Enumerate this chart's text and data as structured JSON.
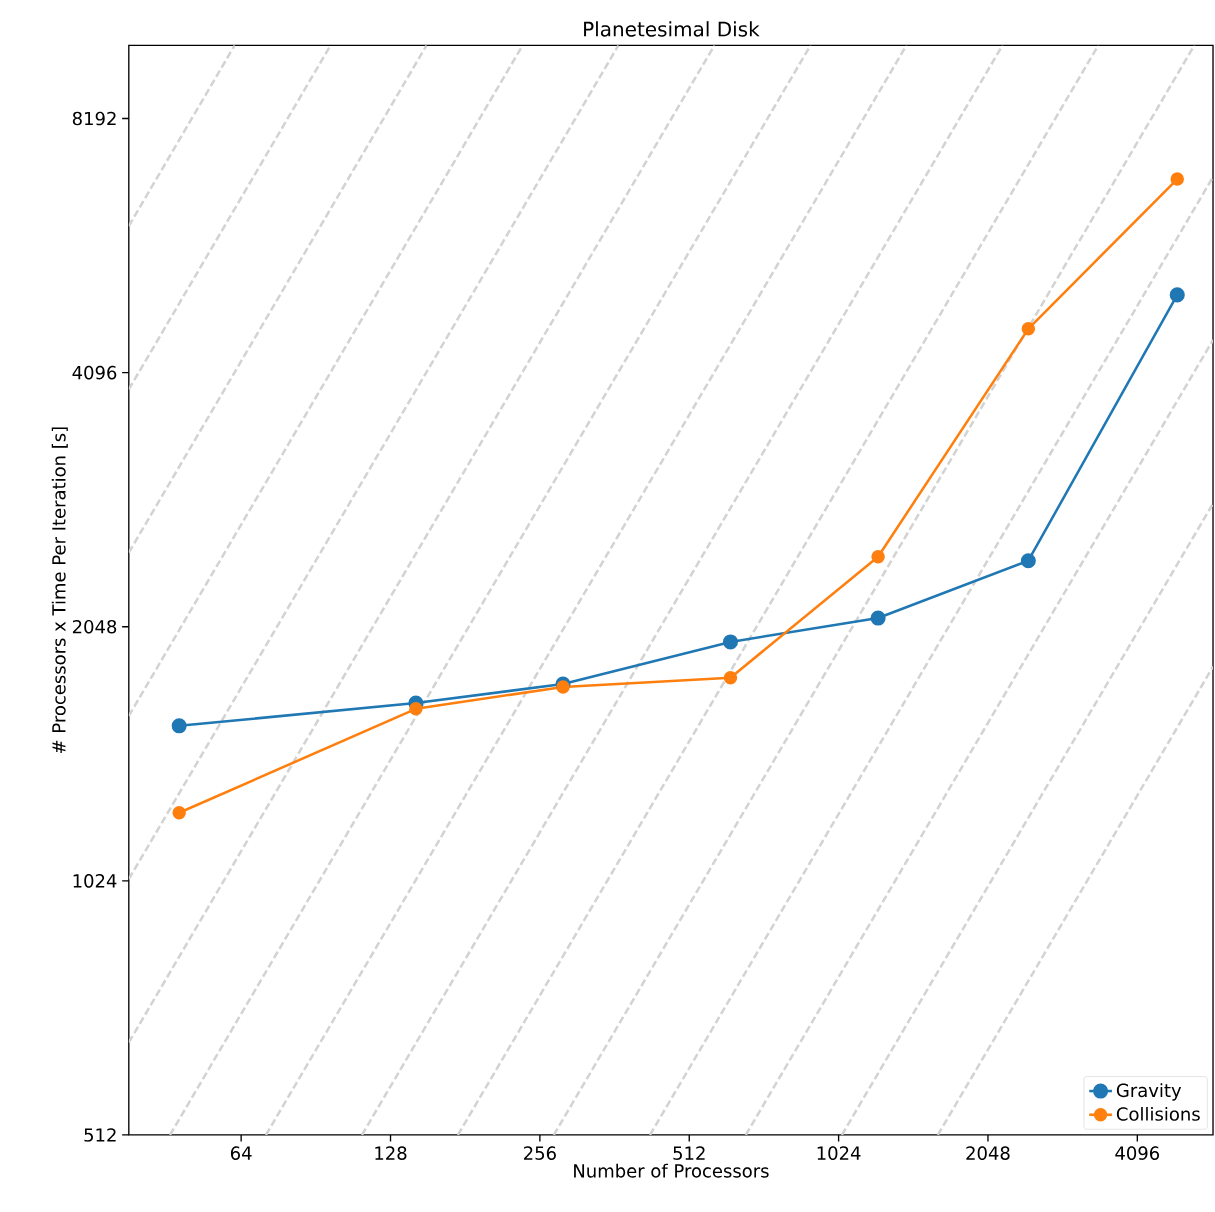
{
  "chart_data": {
    "type": "line",
    "title": "Planetesimal Disk",
    "xlabel": "Number of Processors",
    "ylabel": "# Processors x Time Per Iteration [s]",
    "log": "xy",
    "xlim": [
      38,
      5820
    ],
    "ylim": [
      512,
      10000
    ],
    "xticks": [
      64,
      128,
      256,
      512,
      1024,
      2048,
      4096
    ],
    "yticks": [
      512,
      1024,
      2048,
      4096,
      8192
    ],
    "legend": "bottom right",
    "marker": "circle",
    "line_style": "solid",
    "series": [
      {
        "color": "#d3d3d3",
        "marker": "none",
        "line_style": "dashed",
        "x": [
          38,
          62.1
        ],
        "values": [
          6110,
          10000
        ]
      },
      {
        "color": "#d3d3d3",
        "marker": "none",
        "line_style": "dashed",
        "x": [
          38,
          96.9
        ],
        "values": [
          3913,
          10000
        ]
      },
      {
        "color": "#d3d3d3",
        "marker": "none",
        "line_style": "dashed",
        "x": [
          38,
          151.3
        ],
        "values": [
          2507,
          10000
        ]
      },
      {
        "color": "#d3d3d3",
        "marker": "none",
        "line_style": "dashed",
        "x": [
          38,
          236.3
        ],
        "values": [
          1606,
          10000
        ]
      },
      {
        "color": "#d3d3d3",
        "marker": "none",
        "line_style": "dashed",
        "x": [
          38,
          368.6
        ],
        "values": [
          1029,
          10000
        ]
      },
      {
        "color": "#d3d3d3",
        "marker": "none",
        "line_style": "dashed",
        "x": [
          38,
          575.5
        ],
        "values": [
          659,
          10000
        ]
      },
      {
        "color": "#d3d3d3",
        "marker": "none",
        "line_style": "dashed",
        "x": [
          46.0,
          899
        ],
        "values": [
          512,
          10000
        ]
      },
      {
        "color": "#d3d3d3",
        "marker": "none",
        "line_style": "dashed",
        "x": [
          71.8,
          1403
        ],
        "values": [
          512,
          10000
        ]
      },
      {
        "color": "#d3d3d3",
        "marker": "none",
        "line_style": "dashed",
        "x": [
          112.1,
          2191
        ],
        "values": [
          512,
          10000
        ]
      },
      {
        "color": "#d3d3d3",
        "marker": "none",
        "line_style": "dashed",
        "x": [
          175.0,
          3418
        ],
        "values": [
          512,
          10000
        ]
      },
      {
        "color": "#d3d3d3",
        "marker": "none",
        "line_style": "dashed",
        "x": [
          273.1,
          5337
        ],
        "values": [
          512,
          10000
        ]
      },
      {
        "color": "#d3d3d3",
        "marker": "none",
        "line_style": "dashed",
        "x": [
          426.7,
          5820
        ],
        "values": [
          512,
          6984
        ]
      },
      {
        "color": "#d3d3d3",
        "marker": "none",
        "line_style": "dashed",
        "x": [
          665.7,
          5820
        ],
        "values": [
          512,
          4477
        ]
      },
      {
        "color": "#d3d3d3",
        "marker": "none",
        "line_style": "dashed",
        "x": [
          1039.7,
          5820
        ],
        "values": [
          512,
          2866
        ]
      },
      {
        "color": "#d3d3d3",
        "marker": "none",
        "line_style": "dashed",
        "x": [
          1623,
          5820
        ],
        "values": [
          512,
          1837
        ]
      },
      {
        "name": "Gravity",
        "color": "#1f77b4",
        "x": [
          48,
          144,
          285,
          620,
          1230,
          2470,
          4930
        ],
        "values": [
          1563,
          1663,
          1752,
          1965,
          2097,
          2452,
          5063
        ]
      },
      {
        "name": "Collisions",
        "color": "#ff7f0e",
        "x": [
          48,
          144,
          285,
          620,
          1230,
          2470,
          4930
        ],
        "values": [
          1233,
          1637,
          1738,
          1782,
          2479,
          4615,
          6945
        ]
      }
    ]
  }
}
